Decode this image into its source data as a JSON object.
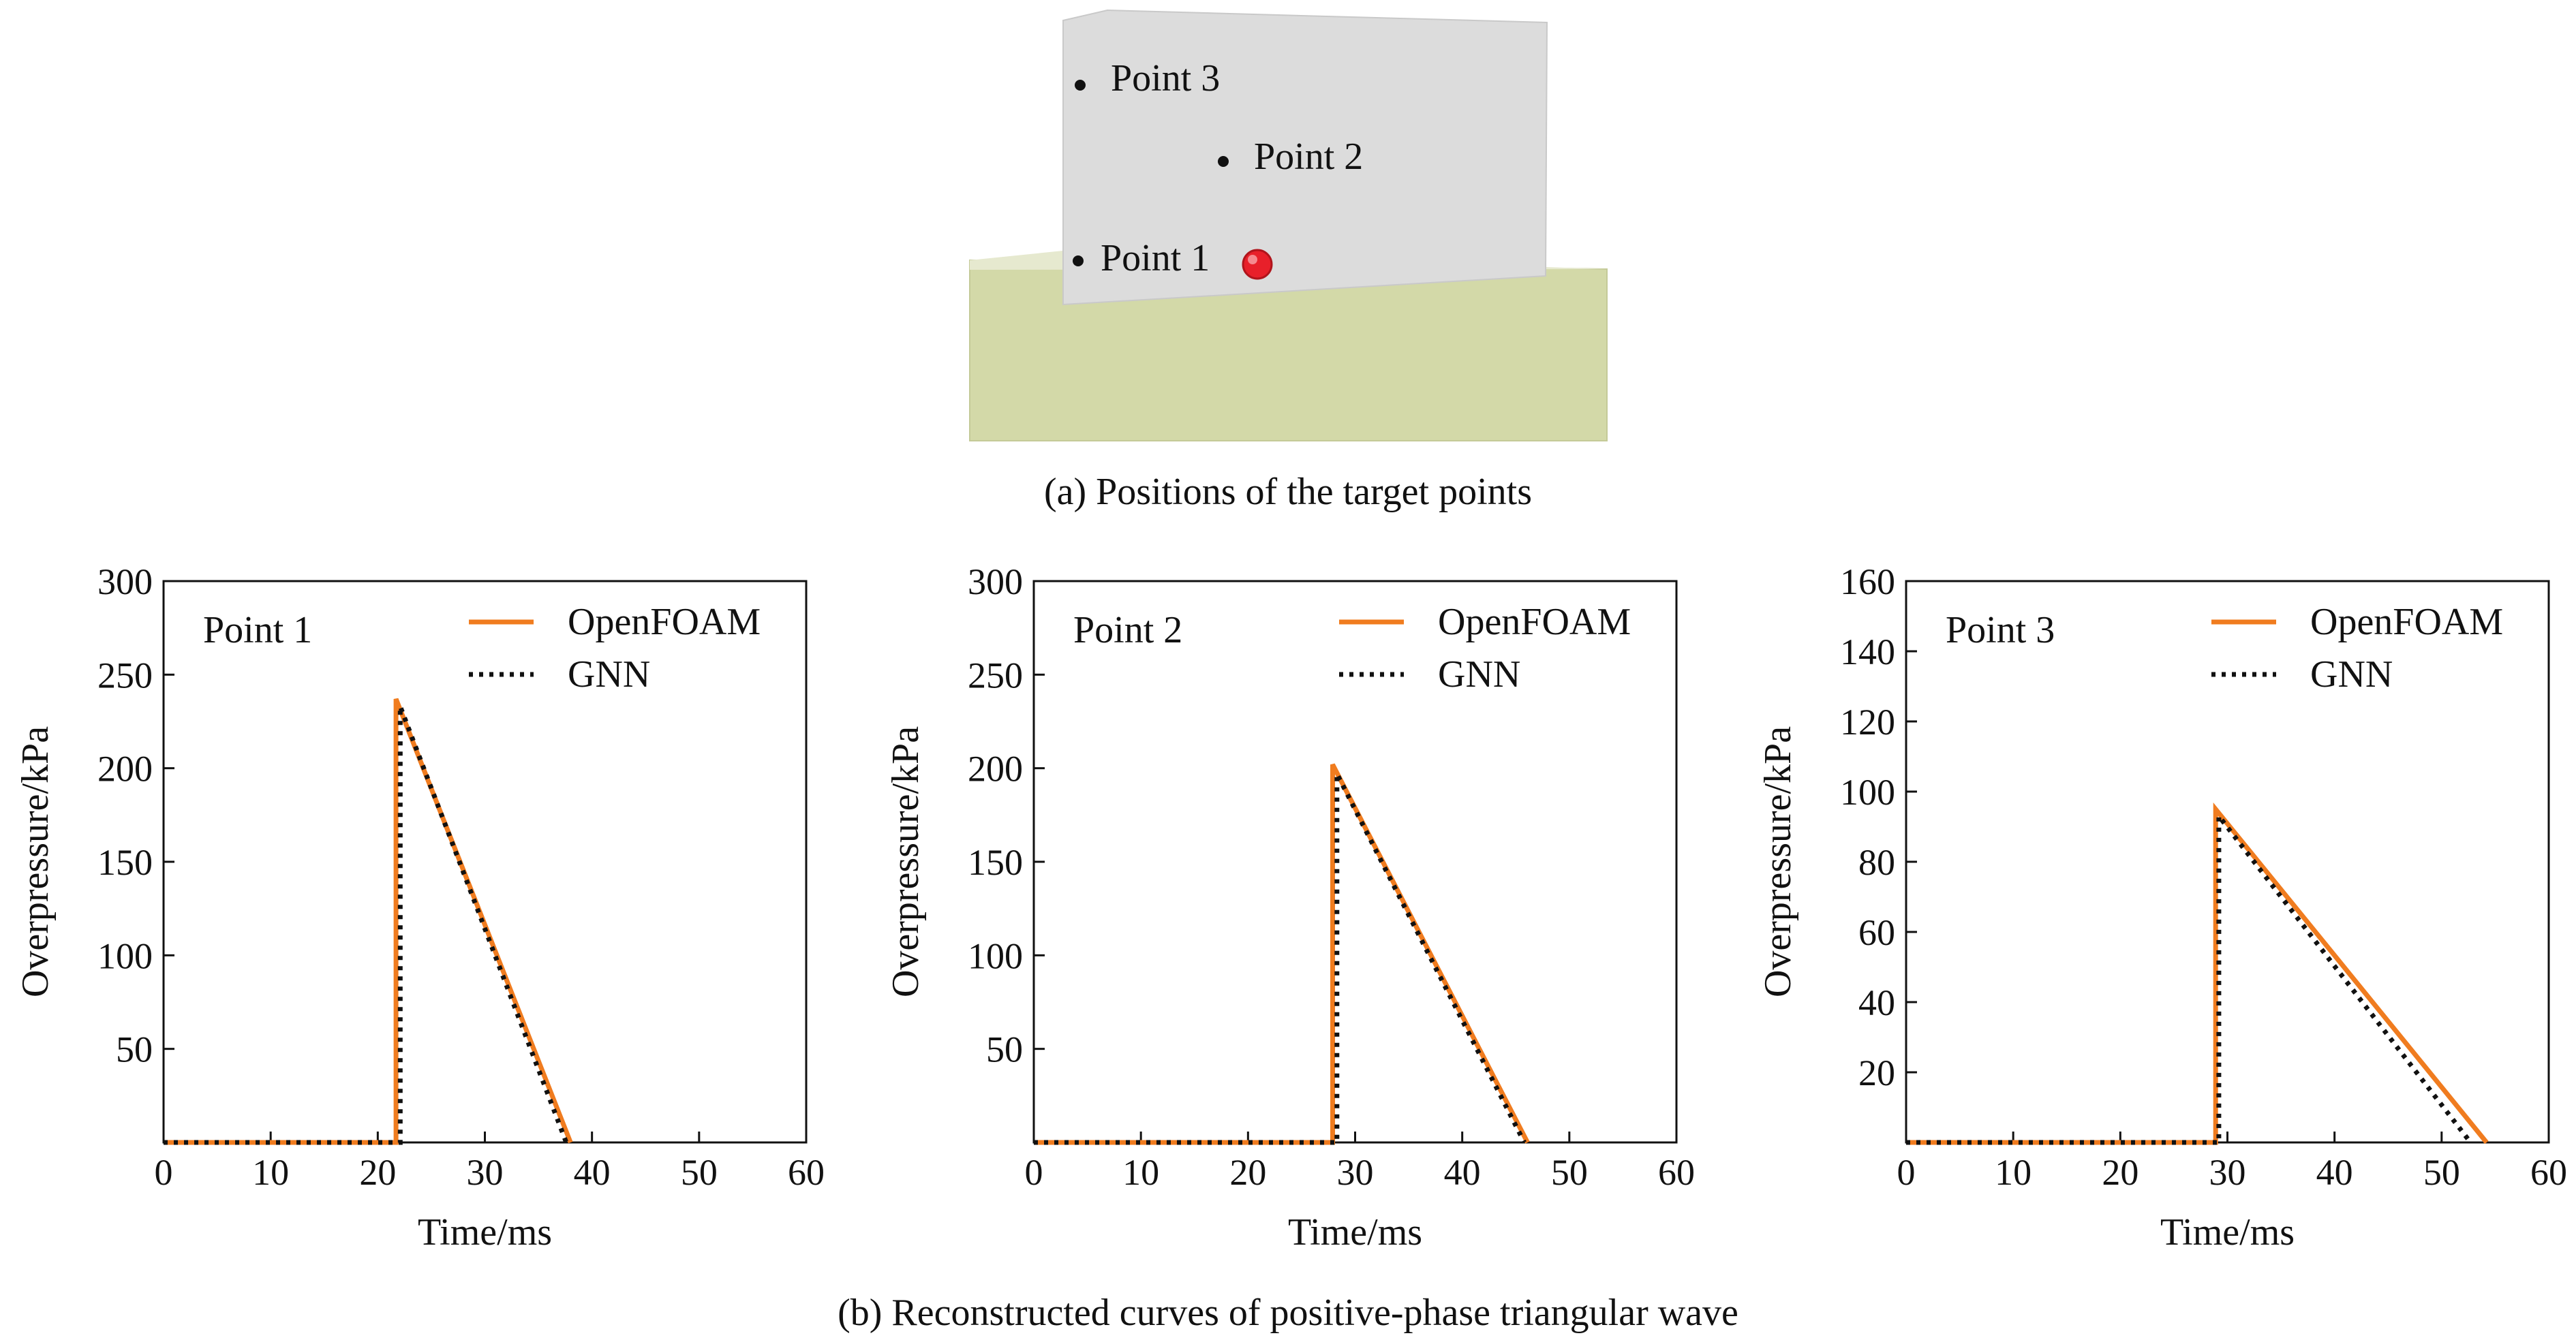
{
  "figure": {
    "caption_a": "(a) Positions of the target points",
    "caption_b": "(b) Reconstructed curves of positive-phase triangular wave",
    "point_labels": [
      "Point 1",
      "Point 2",
      "Point 3"
    ],
    "colors": {
      "wall": "#dcdcdc",
      "ground": "#d3d9a8",
      "charge": "#e8202a",
      "openfoam": "#f07c1f",
      "gnn": "#111111"
    }
  },
  "chart_data": [
    {
      "type": "line",
      "panel_label": "Point 1",
      "xlabel": "Time/ms",
      "ylabel": "Overpressure/kPa",
      "xlim": [
        0,
        60
      ],
      "ylim": [
        0,
        300
      ],
      "xticks": [
        0,
        10,
        20,
        30,
        40,
        50,
        60
      ],
      "yticks": [
        50,
        100,
        150,
        200,
        250,
        300
      ],
      "legend": [
        "OpenFOAM",
        "GNN"
      ],
      "series": [
        {
          "name": "OpenFOAM",
          "x": [
            0,
            21.7,
            21.7,
            38
          ],
          "y": [
            0,
            0,
            237,
            0
          ]
        },
        {
          "name": "GNN",
          "x": [
            0,
            22.1,
            22.1,
            37.6
          ],
          "y": [
            0,
            0,
            233,
            0
          ]
        }
      ]
    },
    {
      "type": "line",
      "panel_label": "Point 2",
      "xlabel": "Time/ms",
      "ylabel": "Overpressure/kPa",
      "xlim": [
        0,
        60
      ],
      "ylim": [
        0,
        300
      ],
      "xticks": [
        0,
        10,
        20,
        30,
        40,
        50,
        60
      ],
      "yticks": [
        50,
        100,
        150,
        200,
        250,
        300
      ],
      "legend": [
        "OpenFOAM",
        "GNN"
      ],
      "series": [
        {
          "name": "OpenFOAM",
          "x": [
            0,
            27.9,
            27.9,
            46.1
          ],
          "y": [
            0,
            0,
            202,
            0
          ]
        },
        {
          "name": "GNN",
          "x": [
            0,
            28.3,
            28.3,
            45.8
          ],
          "y": [
            0,
            0,
            197,
            0
          ]
        }
      ]
    },
    {
      "type": "line",
      "panel_label": "Point 3",
      "xlabel": "Time/ms",
      "ylabel": "Overpressure/kPa",
      "xlim": [
        0,
        60
      ],
      "ylim": [
        0,
        160
      ],
      "xticks": [
        0,
        10,
        20,
        30,
        40,
        50,
        60
      ],
      "yticks": [
        20,
        40,
        60,
        80,
        100,
        120,
        140,
        160
      ],
      "legend": [
        "OpenFOAM",
        "GNN"
      ],
      "series": [
        {
          "name": "OpenFOAM",
          "x": [
            0,
            28.9,
            28.9,
            54.2
          ],
          "y": [
            0,
            0,
            95,
            0
          ]
        },
        {
          "name": "GNN",
          "x": [
            0,
            29.2,
            29.2,
            52.7
          ],
          "y": [
            0,
            0,
            93,
            0
          ]
        }
      ]
    }
  ]
}
